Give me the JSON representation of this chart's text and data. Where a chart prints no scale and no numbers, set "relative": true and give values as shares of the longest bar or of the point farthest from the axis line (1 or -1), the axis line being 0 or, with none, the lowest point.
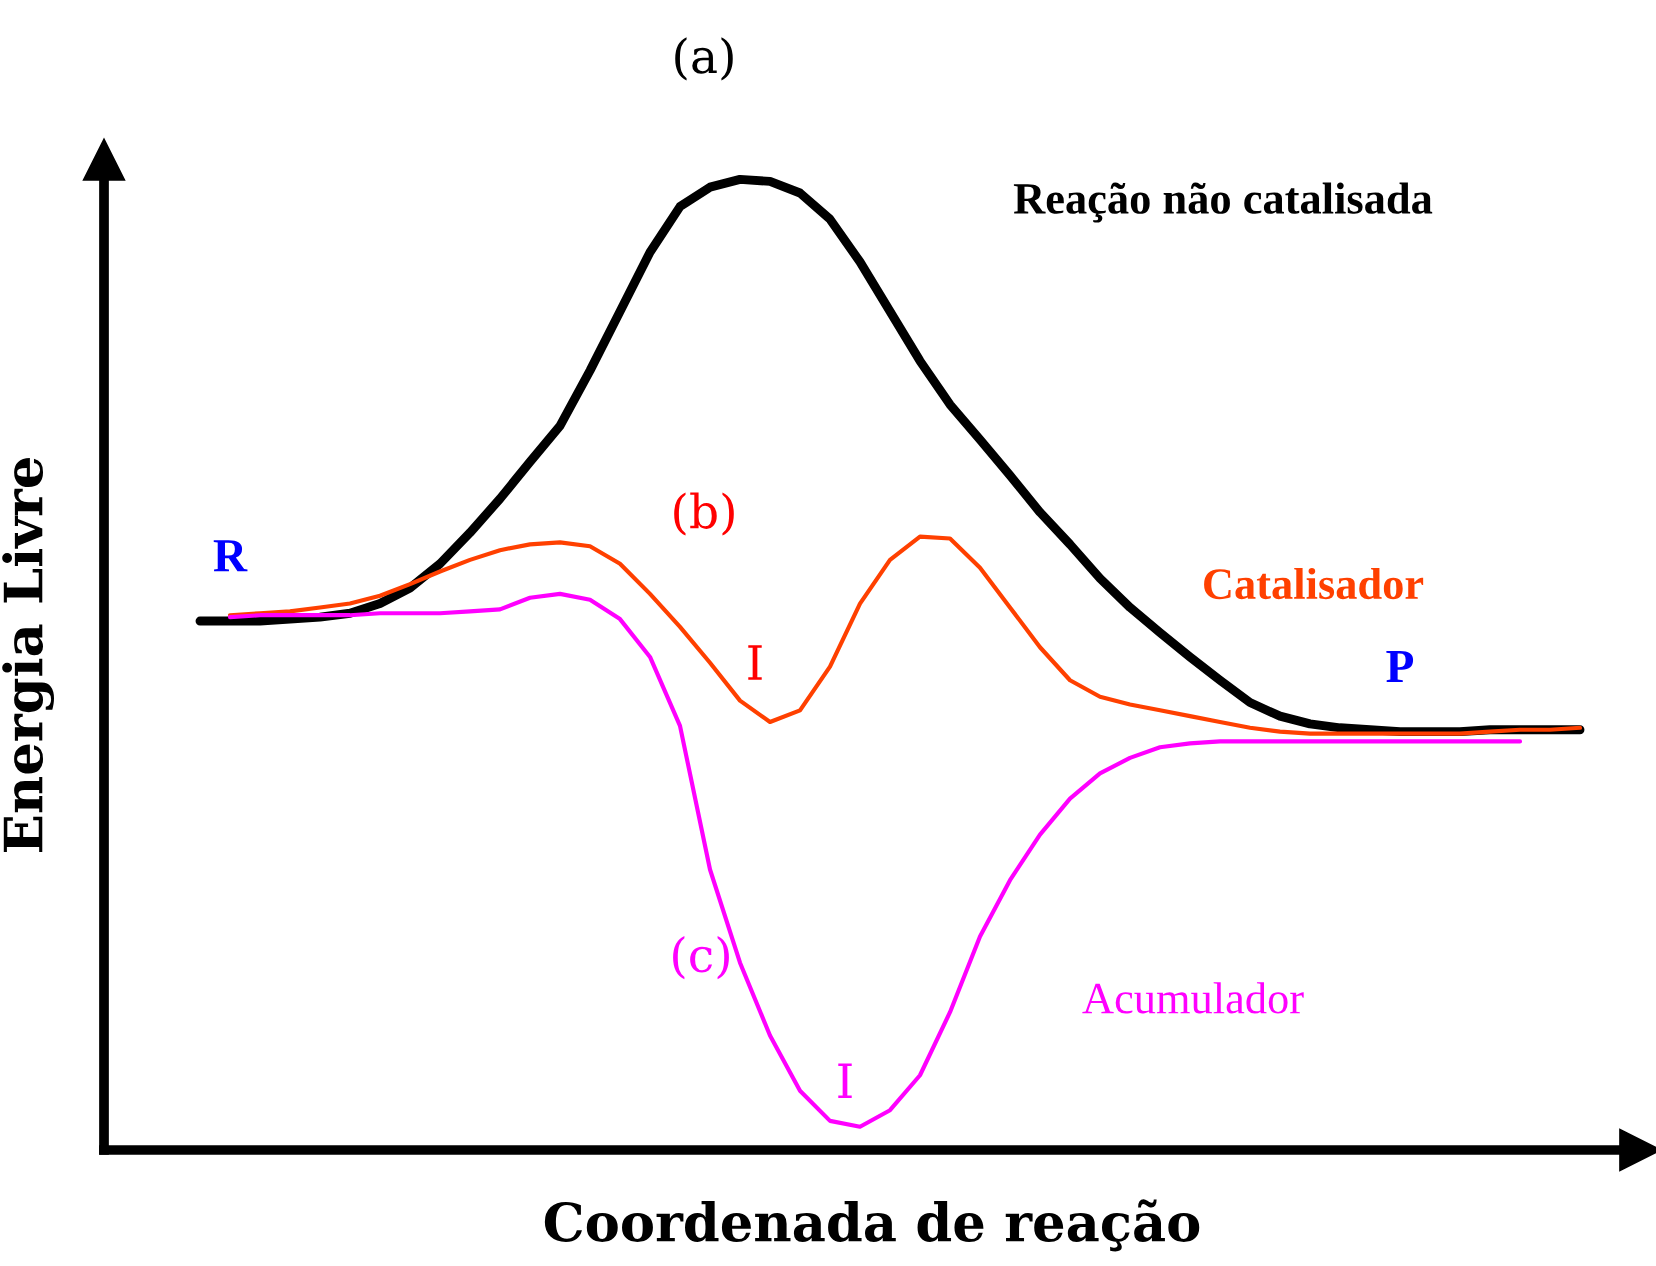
{
  "chart_data": {
    "type": "line",
    "title": "(a)",
    "xlabel": "Coordenada de reação",
    "ylabel": "Energia Livre",
    "relative": true,
    "legend": false,
    "marker": "none",
    "line_style": "solid",
    "categories": [
      null,
      null,
      null,
      null,
      null,
      null,
      null,
      null,
      null,
      null,
      null,
      null,
      null,
      null,
      null,
      null,
      null,
      null,
      null,
      null,
      null,
      null,
      null,
      null,
      null,
      null,
      null,
      null,
      null,
      null,
      null,
      null,
      null,
      null,
      null,
      null,
      null,
      null,
      null,
      null,
      null,
      null,
      null,
      null,
      null,
      null,
      null
    ],
    "series": [
      {
        "name": "Reação não catalisada",
        "color": "#000000",
        "values": [
          0.545,
          0.545,
          0.545,
          0.547,
          0.549,
          0.553,
          0.563,
          0.579,
          0.604,
          0.636,
          0.671,
          0.709,
          0.746,
          0.803,
          0.864,
          0.925,
          0.972,
          0.992,
          1,
          0.998,
          0.986,
          0.959,
          0.915,
          0.864,
          0.813,
          0.768,
          0.732,
          0.695,
          0.657,
          0.624,
          0.589,
          0.559,
          0.533,
          0.508,
          0.484,
          0.461,
          0.447,
          0.439,
          0.435,
          0.433,
          0.431,
          0.431,
          0.431,
          0.433,
          0.433,
          0.433,
          0.433
        ]
      },
      {
        "name": "Catalisador",
        "color": "#ff4000",
        "values": [
          null,
          0.551,
          0.553,
          0.555,
          0.559,
          0.563,
          0.571,
          0.583,
          0.596,
          0.608,
          0.618,
          0.624,
          0.626,
          0.622,
          0.604,
          0.573,
          0.539,
          0.502,
          0.463,
          0.441,
          0.453,
          0.498,
          0.563,
          0.608,
          0.632,
          0.63,
          0.6,
          0.559,
          0.518,
          0.484,
          0.467,
          0.459,
          0.453,
          0.447,
          0.441,
          0.435,
          0.431,
          0.429,
          0.429,
          0.429,
          0.429,
          0.429,
          0.429,
          0.431,
          0.433,
          0.433,
          0.435
        ]
      },
      {
        "name": "Acumulador",
        "color": "#ff00ff",
        "values": [
          null,
          0.549,
          0.551,
          0.551,
          0.551,
          0.551,
          0.553,
          0.553,
          0.553,
          0.555,
          0.557,
          0.569,
          0.573,
          0.567,
          0.547,
          0.508,
          0.437,
          0.289,
          0.193,
          0.118,
          0.061,
          0.03,
          0.024,
          0.041,
          0.077,
          0.142,
          0.22,
          0.278,
          0.325,
          0.362,
          0.388,
          0.404,
          0.415,
          0.419,
          0.421,
          0.421,
          0.421,
          0.421,
          0.421,
          0.421,
          0.421,
          0.421,
          0.421,
          0.421,
          0.421,
          null,
          null
        ]
      }
    ],
    "annotations": [
      "(b)",
      "I",
      "(c)",
      "I",
      "R",
      "P"
    ]
  }
}
